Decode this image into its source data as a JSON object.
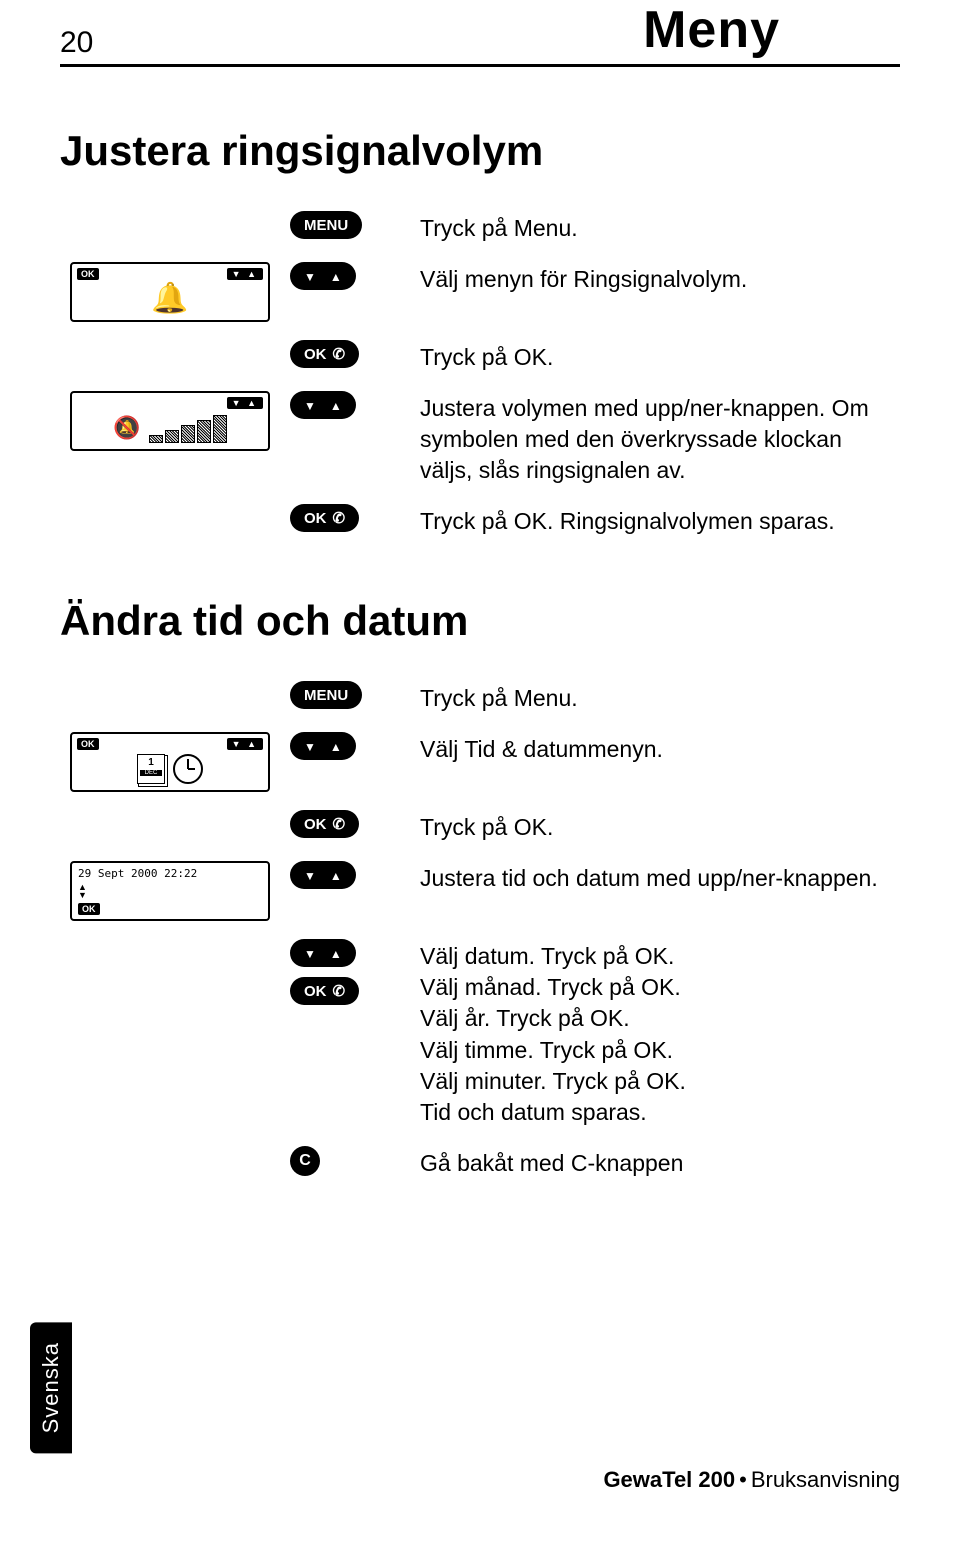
{
  "page_number": "20",
  "header_title": "Meny",
  "section1": {
    "title": "Justera ringsignalvolym",
    "steps": [
      {
        "button": "menu",
        "label": "MENU",
        "text": "Tryck på Menu."
      },
      {
        "button": "updown",
        "text": "Välj menyn för Ringsignalvolym."
      },
      {
        "button": "okcall",
        "label": "OK",
        "text": "Tryck på OK."
      },
      {
        "button": "updown",
        "text": "Justera volymen med upp/ner-knappen. Om symbolen med den överkryssade klockan väljs, slås ringsignalen av."
      },
      {
        "button": "okcall",
        "label": "OK",
        "text": "Tryck på OK. Ringsignalvolymen sparas."
      }
    ]
  },
  "section2": {
    "title": "Ändra tid och datum",
    "datetime_display": "29 Sept 2000 22:22",
    "steps": [
      {
        "button": "menu",
        "label": "MENU",
        "text": "Tryck på Menu."
      },
      {
        "button": "updown",
        "text": "Välj Tid & datummenyn."
      },
      {
        "button": "okcall",
        "label": "OK",
        "text": "Tryck på OK."
      },
      {
        "button": "updown",
        "text": "Justera tid och datum med upp/ner-knappen."
      },
      {
        "button": "updown_ok",
        "label": "OK",
        "text": "Välj datum. Tryck på OK.\nVälj månad. Tryck på OK.\nVälj år. Tryck på OK.\nVälj timme. Tryck på OK.\nVälj minuter. Tryck på OK.\nTid och datum sparas."
      },
      {
        "button": "c",
        "label": "C",
        "text": "Gå bakåt med C-knappen"
      }
    ]
  },
  "side_tab": "Svenska",
  "footer_product": "GewaTel 200",
  "footer_doc": "Bruksanvisning",
  "colors": {
    "text": "#000000",
    "bg": "#ffffff"
  }
}
